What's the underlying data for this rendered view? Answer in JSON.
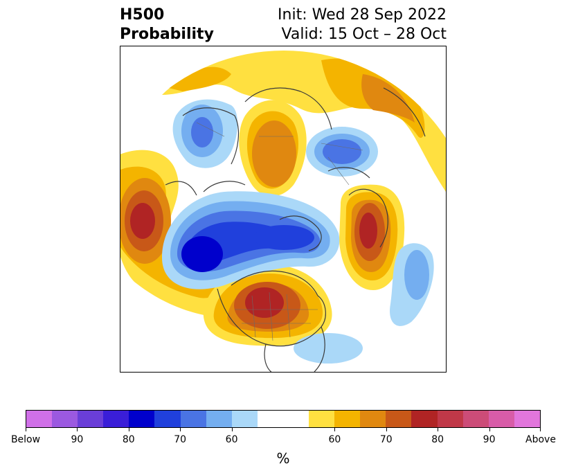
{
  "title": {
    "left_line1": "H500",
    "left_line2": "Probability",
    "right_line1": "Init: Wed 28 Sep 2022",
    "right_line2": "Valid: 15 Oct – 28 Oct"
  },
  "map": {
    "projection": "north polar stereographic",
    "coastline_color": "#3a3a3a",
    "features": [
      {
        "kind": "above",
        "level": 80,
        "area": "north-central United States / southern Canada"
      },
      {
        "kind": "above",
        "level": 80,
        "area": "Gulf of Alaska / NE Pacific"
      },
      {
        "kind": "above",
        "level": 80,
        "area": "Scandinavia / Barents Sea"
      },
      {
        "kind": "above",
        "level": 60,
        "area": "central Siberia"
      },
      {
        "kind": "above",
        "level": 60,
        "area": "Eurasia southern rim"
      },
      {
        "kind": "below",
        "level": 80,
        "area": "Bering Sea / East Siberia / Arctic"
      },
      {
        "kind": "below",
        "level": 70,
        "area": "eastern Europe"
      },
      {
        "kind": "below",
        "level": 60,
        "area": "East Asia / Mongolia"
      },
      {
        "kind": "below",
        "level": 60,
        "area": "mid North Atlantic"
      },
      {
        "kind": "below",
        "level": 60,
        "area": "western Atlantic off US coast"
      }
    ]
  },
  "colorbar": {
    "colors": [
      "#d070e8",
      "#9b59e0",
      "#6a3ed8",
      "#3a1ed8",
      "#0000cc",
      "#2040dc",
      "#4a74e4",
      "#74aef0",
      "#aad8f8",
      "#ffffff",
      "#ffe040",
      "#f4b400",
      "#e08810",
      "#c85818",
      "#b02424",
      "#c03848",
      "#cc4c78",
      "#d85ca8",
      "#e276dc"
    ],
    "wide_index": 9,
    "tick_labels": [
      "Below",
      "90",
      "80",
      "70",
      "60",
      "60",
      "70",
      "80",
      "90",
      "Above"
    ],
    "unit": "%"
  },
  "palette": {
    "above": {
      "50": "#ffe040",
      "60": "#f4b400",
      "70": "#e08810",
      "80": "#c85818",
      "90": "#b02424"
    },
    "below": {
      "50": "#aad8f8",
      "60": "#74aef0",
      "70": "#4a74e4",
      "80": "#2040dc",
      "90": "#0000cc"
    }
  }
}
